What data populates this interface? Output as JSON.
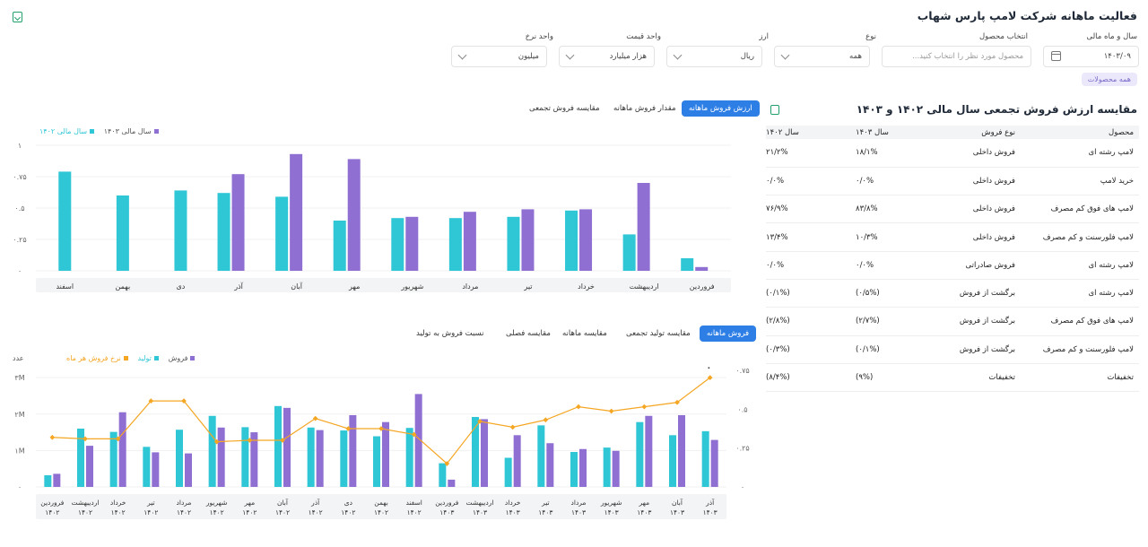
{
  "header": {
    "title": "فعالیت ماهانه شرکت لامپ پارس شهاب"
  },
  "filters": {
    "fiscal_label": "سال و ماه مالی",
    "fiscal_value": "۱۴۰۳/۰۹",
    "product_label": "انتخاب محصول",
    "product_placeholder": "محصول مورد نظر را انتخاب کنید...",
    "type_label": "نوع",
    "type_value": "همه",
    "currency_label": "ارز",
    "currency_value": "ریال",
    "price_unit_label": "واحد قیمت",
    "price_unit_value": "هزار میلیارد",
    "rate_unit_label": "واحد نرخ",
    "rate_unit_value": "میلیون",
    "chip": "همه محصولات"
  },
  "table": {
    "title": "مقایسه ارزش فروش تجمعی سال مالی ۱۴۰۲ و ۱۴۰۳",
    "headers": [
      "محصول",
      "نوع فروش",
      "سال ۱۴۰۳",
      "سال ۱۴۰۲"
    ],
    "rows": [
      [
        "لامپ رشته ای",
        "فروش داخلی",
        "۱۸/۱%",
        "۲۱/۲%"
      ],
      [
        "خرید لامپ",
        "فروش داخلی",
        "۰/۰%",
        "۰/۰%"
      ],
      [
        "لامپ های فوق کم مصرف",
        "فروش داخلی",
        "۸۳/۸%",
        "۷۶/۹%"
      ],
      [
        "لامپ فلورسنت و کم مصرف",
        "فروش داخلی",
        "۱۰/۳%",
        "۱۳/۴%"
      ],
      [
        "لامپ رشته ای",
        "فروش صادراتی",
        "۰/۰%",
        "۰/۰%"
      ],
      [
        "لامپ رشته ای",
        "برگشت از فروش",
        "(۰/۵%)",
        "(۰/۱%)"
      ],
      [
        "لامپ های فوق کم مصرف",
        "برگشت از فروش",
        "(۲/۷%)",
        "(۲/۸%)"
      ],
      [
        "لامپ فلورسنت و کم مصرف",
        "برگشت از فروش",
        "(۰/۱%)",
        "(۰/۳%)"
      ],
      [
        "تخفیفات",
        "تخفیفات",
        "(۹%)",
        "(۸/۴%)"
      ]
    ]
  },
  "top_tabs": [
    "ارزش فروش ماهانه",
    "مقدار فروش ماهانه",
    "مقایسه فروش تجمعی"
  ],
  "bottom_tabs": [
    "فروش ماهانه",
    "مقایسه تولید تجمعی",
    "مقایسه ماهانه",
    "مقایسه فصلی",
    "نسبت فروش به تولید"
  ],
  "bottom_unit": "عدد",
  "colors": {
    "purple": "#8f6fd1",
    "cyan": "#2fc6d6",
    "orange": "#f5a623",
    "accent": "#2e7fe5"
  },
  "chart_data": [
    {
      "type": "bar",
      "categories": [
        "فروردین",
        "اردیبهشت",
        "خرداد",
        "تیر",
        "مرداد",
        "شهریور",
        "مهر",
        "آبان",
        "آذر",
        "دی",
        "بهمن",
        "اسفند"
      ],
      "series": [
        {
          "name": "سال مالی ۱۴۰۳",
          "color": "#8f6fd1",
          "values": [
            0.03,
            0.7,
            0.49,
            0.49,
            0.47,
            0.43,
            0.89,
            0.93,
            0.77,
            null,
            null,
            null
          ]
        },
        {
          "name": "سال مالی ۱۴۰۲",
          "color": "#2fc6d6",
          "values": [
            0.1,
            0.29,
            0.48,
            0.43,
            0.42,
            0.42,
            0.4,
            0.59,
            0.62,
            0.64,
            0.6,
            0.79
          ]
        }
      ],
      "yticks": [
        "۰",
        "۰.۲۵",
        "۰.۵",
        "۰.۷۵",
        "۱"
      ],
      "ylim": [
        0,
        1
      ]
    },
    {
      "type": "bar",
      "categories": [
        "فروردین ۱۴۰۲",
        "اردیبهشت ۱۴۰۲",
        "خرداد ۱۴۰۲",
        "تیر ۱۴۰۲",
        "مرداد ۱۴۰۲",
        "شهریور ۱۴۰۲",
        "مهر ۱۴۰۲",
        "آبان ۱۴۰۲",
        "آذر ۱۴۰۲",
        "دی ۱۴۰۲",
        "بهمن ۱۴۰۲",
        "اسفند ۱۴۰۲",
        "فروردین ۱۴۰۳",
        "اردیبهشت ۱۴۰۳",
        "خرداد ۱۴۰۳",
        "تیر ۱۴۰۳",
        "مرداد ۱۴۰۳",
        "شهریور ۱۴۰۳",
        "مهر ۱۴۰۳",
        "آبان ۱۴۰۳",
        "آذر ۱۴۰۳"
      ],
      "series": [
        {
          "name": "فروش",
          "color": "#8f6fd1",
          "values": [
            0.36,
            1.13,
            2.05,
            0.95,
            0.92,
            1.63,
            1.5,
            2.17,
            1.56,
            1.97,
            1.78,
            2.55,
            0.2,
            1.86,
            1.42,
            1.2,
            1.04,
            0.99,
            1.95,
            1.97,
            1.29
          ]
        },
        {
          "name": "تولید",
          "color": "#2fc6d6",
          "values": [
            0.32,
            1.6,
            1.51,
            1.1,
            1.57,
            1.95,
            1.64,
            2.22,
            1.63,
            1.55,
            1.39,
            1.62,
            0.65,
            1.92,
            0.8,
            1.69,
            0.96,
            1.08,
            1.78,
            1.42,
            1.53
          ]
        },
        {
          "name": "نرخ فروش هر ماه",
          "color": "#f5a623",
          "type": "line",
          "values": [
            0.34,
            0.33,
            0.33,
            0.59,
            0.59,
            0.31,
            0.32,
            0.32,
            0.47,
            0.4,
            0.4,
            0.36,
            0.16,
            0.45,
            0.41,
            0.46,
            0.55,
            0.52,
            0.55,
            0.58,
            0.75
          ]
        }
      ],
      "yticks_left": [
        "۰",
        "۱M",
        "۲M",
        "۳M"
      ],
      "ylim_left": [
        0,
        3.2
      ],
      "yticks_right": [
        "۰",
        "۰.۲۵",
        "۰.۵",
        "۰.۷۵"
      ],
      "ylim_right": [
        0,
        0.8
      ],
      "annotation": "۰"
    }
  ]
}
